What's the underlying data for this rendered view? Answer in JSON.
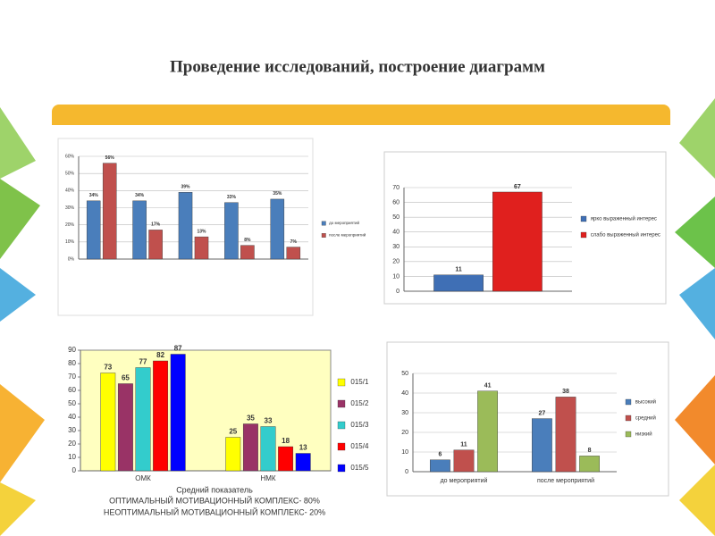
{
  "title": "Проведение исследований, построение диаграмм",
  "chart_data": [
    {
      "type": "bar",
      "categories": [
        null,
        null,
        null,
        null,
        null
      ],
      "series": [
        {
          "name": "до мероприятий",
          "color": "#4a7ebb",
          "values": [
            34,
            34,
            39,
            33,
            35
          ],
          "value_labels": [
            "34%",
            "34%",
            "39%",
            "33%",
            "35%"
          ]
        },
        {
          "name": "после мероприятий",
          "color": "#c0504d",
          "values": [
            56,
            17,
            13,
            8,
            7
          ],
          "value_labels": [
            "56%",
            "17%",
            "13%",
            "8%",
            "7%"
          ]
        }
      ],
      "ylim": [
        0,
        60
      ],
      "yticks": [
        {
          "value": 0,
          "label": "0%"
        },
        {
          "value": 10,
          "label": "10%"
        },
        {
          "value": 20,
          "label": "20%"
        },
        {
          "value": 30,
          "label": "30%"
        },
        {
          "value": 40,
          "label": "40%"
        },
        {
          "value": 50,
          "label": "50%"
        },
        {
          "value": 60,
          "label": "60%"
        }
      ],
      "grid": true,
      "legend": "right"
    },
    {
      "type": "bar",
      "categories": [
        null
      ],
      "series": [
        {
          "name": "ярко выраженный интерес",
          "color": "#3f6fb5",
          "values": [
            11
          ]
        },
        {
          "name": "слабо выраженный интерес",
          "color": "#e0201e",
          "values": [
            67
          ]
        }
      ],
      "ylim": [
        0,
        70
      ],
      "yticks": [
        0,
        10,
        20,
        30,
        40,
        50,
        60,
        70
      ],
      "grid": true,
      "legend": "right"
    },
    {
      "type": "bar",
      "categories": [
        "ОМК",
        "НМК"
      ],
      "series": [
        {
          "name": "015/1",
          "color": "#ffff00",
          "values": [
            73,
            25
          ]
        },
        {
          "name": "015/2",
          "color": "#993366",
          "values": [
            65,
            35
          ]
        },
        {
          "name": "015/3",
          "color": "#33cccc",
          "values": [
            77,
            33
          ]
        },
        {
          "name": "015/4",
          "color": "#ff0000",
          "values": [
            82,
            18
          ]
        },
        {
          "name": "015/5",
          "color": "#0000ff",
          "values": [
            87,
            13
          ]
        }
      ],
      "ylim": [
        0,
        90
      ],
      "yticks": [
        0,
        10,
        20,
        30,
        40,
        50,
        60,
        70,
        80,
        90
      ],
      "grid": false,
      "legend": "right",
      "plot_color": "#ffffc0"
    },
    {
      "type": "bar",
      "categories": [
        "до мероприятий",
        "после мероприятий"
      ],
      "series": [
        {
          "name": "высокий",
          "color": "#4a7ebb",
          "values": [
            6,
            27
          ]
        },
        {
          "name": "средний",
          "color": "#c0504d",
          "values": [
            11,
            38
          ]
        },
        {
          "name": "низкий",
          "color": "#9bbb59",
          "values": [
            41,
            8
          ]
        }
      ],
      "ylim": [
        0,
        50
      ],
      "yticks": [
        0,
        10,
        20,
        30,
        40,
        50
      ],
      "grid": true,
      "legend": "right"
    }
  ],
  "notes": [
    "Средний показатель",
    "ОПТИМАЛЬНЫЙ МОТИВАЦИОННЫЙ КОМПЛЕКС- 80%",
    "НЕОПТИМАЛЬНЫЙ МОТИВАЦИОННЫЙ КОМПЛЕКС- 20%"
  ]
}
